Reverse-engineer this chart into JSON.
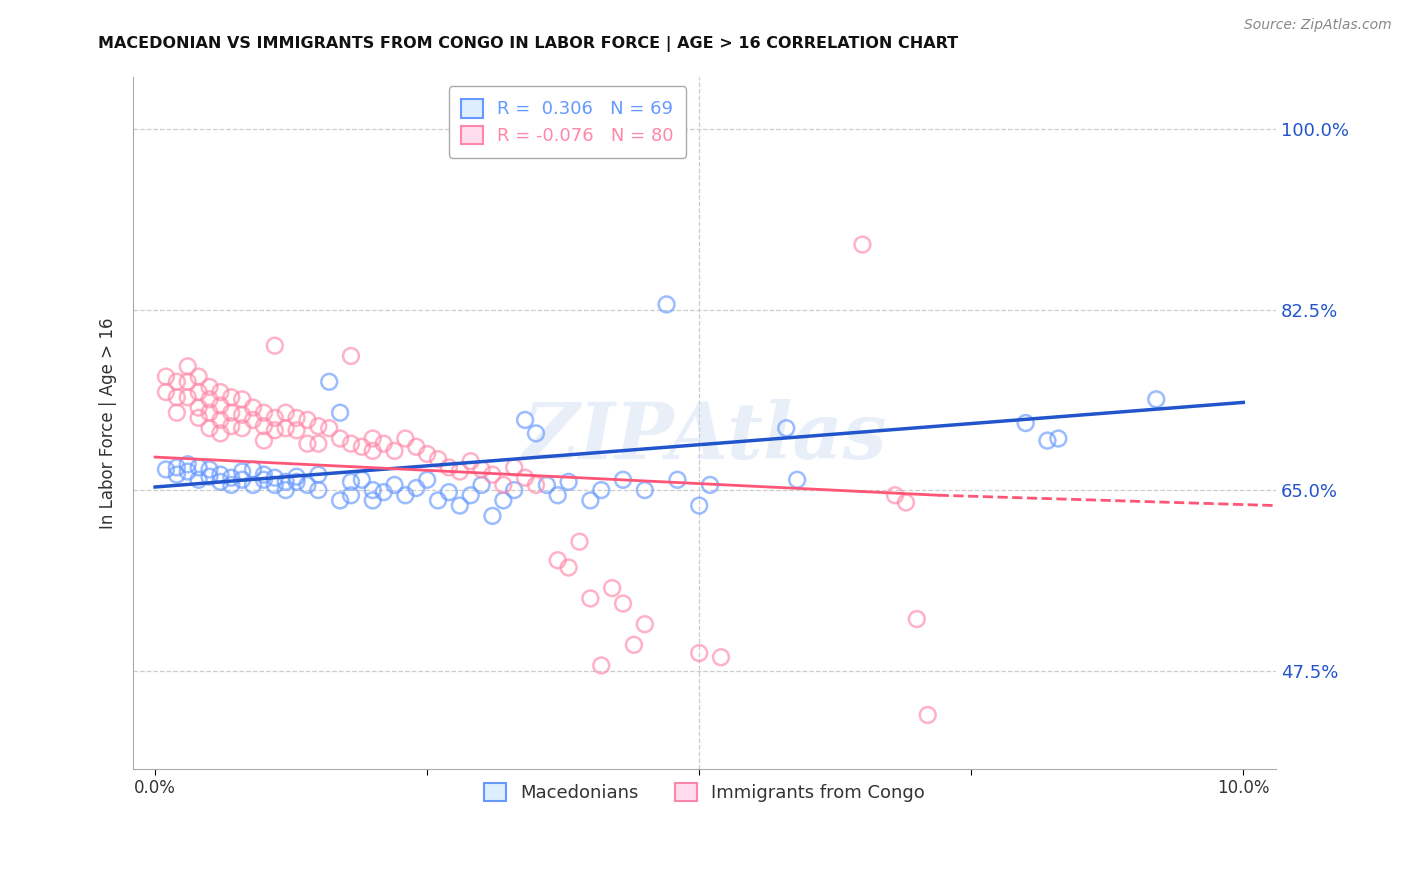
{
  "title": "MACEDONIAN VS IMMIGRANTS FROM CONGO IN LABOR FORCE | AGE > 16 CORRELATION CHART",
  "source": "Source: ZipAtlas.com",
  "ylabel": "In Labor Force | Age > 16",
  "ytick_labels": [
    "100.0%",
    "82.5%",
    "65.0%",
    "47.5%"
  ],
  "ytick_values": [
    1.0,
    0.825,
    0.65,
    0.475
  ],
  "ymin": 0.38,
  "ymax": 1.05,
  "xmin": -0.002,
  "xmax": 0.103,
  "watermark": "ZIPAtlas",
  "blue_color": "#6699ff",
  "pink_color": "#ff88aa",
  "trendline_blue_color": "#2255cc",
  "trendline_pink_color": "#ff5577",
  "blue_trendline": [
    [
      0.0,
      0.653
    ],
    [
      0.1,
      0.735
    ]
  ],
  "pink_trendline_solid": [
    [
      0.0,
      0.682
    ],
    [
      0.072,
      0.645
    ]
  ],
  "pink_trendline_dashed": [
    [
      0.072,
      0.645
    ],
    [
      0.103,
      0.635
    ]
  ],
  "macedonian_scatter": [
    [
      0.001,
      0.67
    ],
    [
      0.002,
      0.665
    ],
    [
      0.002,
      0.672
    ],
    [
      0.003,
      0.668
    ],
    [
      0.003,
      0.675
    ],
    [
      0.004,
      0.66
    ],
    [
      0.004,
      0.672
    ],
    [
      0.005,
      0.663
    ],
    [
      0.005,
      0.67
    ],
    [
      0.006,
      0.658
    ],
    [
      0.006,
      0.665
    ],
    [
      0.007,
      0.655
    ],
    [
      0.007,
      0.662
    ],
    [
      0.008,
      0.66
    ],
    [
      0.008,
      0.668
    ],
    [
      0.009,
      0.655
    ],
    [
      0.009,
      0.67
    ],
    [
      0.01,
      0.66
    ],
    [
      0.01,
      0.665
    ],
    [
      0.011,
      0.655
    ],
    [
      0.011,
      0.662
    ],
    [
      0.012,
      0.658
    ],
    [
      0.012,
      0.65
    ],
    [
      0.013,
      0.663
    ],
    [
      0.013,
      0.658
    ],
    [
      0.014,
      0.655
    ],
    [
      0.015,
      0.665
    ],
    [
      0.015,
      0.65
    ],
    [
      0.016,
      0.755
    ],
    [
      0.017,
      0.725
    ],
    [
      0.017,
      0.64
    ],
    [
      0.018,
      0.645
    ],
    [
      0.018,
      0.658
    ],
    [
      0.019,
      0.66
    ],
    [
      0.02,
      0.65
    ],
    [
      0.02,
      0.64
    ],
    [
      0.021,
      0.648
    ],
    [
      0.022,
      0.655
    ],
    [
      0.023,
      0.645
    ],
    [
      0.024,
      0.652
    ],
    [
      0.025,
      0.66
    ],
    [
      0.026,
      0.64
    ],
    [
      0.027,
      0.648
    ],
    [
      0.028,
      0.635
    ],
    [
      0.029,
      0.645
    ],
    [
      0.03,
      0.655
    ],
    [
      0.031,
      0.625
    ],
    [
      0.032,
      0.64
    ],
    [
      0.033,
      0.65
    ],
    [
      0.034,
      0.718
    ],
    [
      0.035,
      0.705
    ],
    [
      0.036,
      0.655
    ],
    [
      0.037,
      0.645
    ],
    [
      0.038,
      0.658
    ],
    [
      0.04,
      0.64
    ],
    [
      0.041,
      0.65
    ],
    [
      0.043,
      0.66
    ],
    [
      0.045,
      0.65
    ],
    [
      0.047,
      0.83
    ],
    [
      0.048,
      0.66
    ],
    [
      0.05,
      0.635
    ],
    [
      0.051,
      0.655
    ],
    [
      0.058,
      0.71
    ],
    [
      0.059,
      0.66
    ],
    [
      0.08,
      0.715
    ],
    [
      0.082,
      0.698
    ],
    [
      0.083,
      0.7
    ],
    [
      0.092,
      0.738
    ]
  ],
  "congo_scatter": [
    [
      0.001,
      0.76
    ],
    [
      0.001,
      0.745
    ],
    [
      0.002,
      0.755
    ],
    [
      0.002,
      0.74
    ],
    [
      0.002,
      0.725
    ],
    [
      0.003,
      0.77
    ],
    [
      0.003,
      0.755
    ],
    [
      0.003,
      0.74
    ],
    [
      0.004,
      0.76
    ],
    [
      0.004,
      0.745
    ],
    [
      0.004,
      0.73
    ],
    [
      0.004,
      0.72
    ],
    [
      0.005,
      0.75
    ],
    [
      0.005,
      0.738
    ],
    [
      0.005,
      0.725
    ],
    [
      0.005,
      0.71
    ],
    [
      0.006,
      0.745
    ],
    [
      0.006,
      0.732
    ],
    [
      0.006,
      0.718
    ],
    [
      0.006,
      0.705
    ],
    [
      0.007,
      0.74
    ],
    [
      0.007,
      0.725
    ],
    [
      0.007,
      0.712
    ],
    [
      0.008,
      0.738
    ],
    [
      0.008,
      0.723
    ],
    [
      0.008,
      0.71
    ],
    [
      0.009,
      0.73
    ],
    [
      0.009,
      0.718
    ],
    [
      0.01,
      0.725
    ],
    [
      0.01,
      0.712
    ],
    [
      0.01,
      0.698
    ],
    [
      0.011,
      0.79
    ],
    [
      0.011,
      0.72
    ],
    [
      0.011,
      0.708
    ],
    [
      0.012,
      0.725
    ],
    [
      0.012,
      0.71
    ],
    [
      0.013,
      0.72
    ],
    [
      0.013,
      0.708
    ],
    [
      0.014,
      0.718
    ],
    [
      0.014,
      0.695
    ],
    [
      0.015,
      0.712
    ],
    [
      0.015,
      0.695
    ],
    [
      0.016,
      0.71
    ],
    [
      0.017,
      0.7
    ],
    [
      0.018,
      0.78
    ],
    [
      0.018,
      0.695
    ],
    [
      0.019,
      0.692
    ],
    [
      0.02,
      0.688
    ],
    [
      0.02,
      0.7
    ],
    [
      0.021,
      0.695
    ],
    [
      0.022,
      0.688
    ],
    [
      0.023,
      0.7
    ],
    [
      0.024,
      0.692
    ],
    [
      0.025,
      0.685
    ],
    [
      0.026,
      0.68
    ],
    [
      0.027,
      0.672
    ],
    [
      0.028,
      0.668
    ],
    [
      0.029,
      0.678
    ],
    [
      0.03,
      0.67
    ],
    [
      0.031,
      0.665
    ],
    [
      0.032,
      0.655
    ],
    [
      0.033,
      0.672
    ],
    [
      0.034,
      0.662
    ],
    [
      0.035,
      0.655
    ],
    [
      0.037,
      0.582
    ],
    [
      0.038,
      0.575
    ],
    [
      0.039,
      0.6
    ],
    [
      0.04,
      0.545
    ],
    [
      0.041,
      0.48
    ],
    [
      0.042,
      0.555
    ],
    [
      0.043,
      0.54
    ],
    [
      0.044,
      0.5
    ],
    [
      0.045,
      0.52
    ],
    [
      0.05,
      0.492
    ],
    [
      0.052,
      0.488
    ],
    [
      0.065,
      0.888
    ],
    [
      0.068,
      0.645
    ],
    [
      0.069,
      0.638
    ],
    [
      0.07,
      0.525
    ],
    [
      0.071,
      0.432
    ]
  ]
}
